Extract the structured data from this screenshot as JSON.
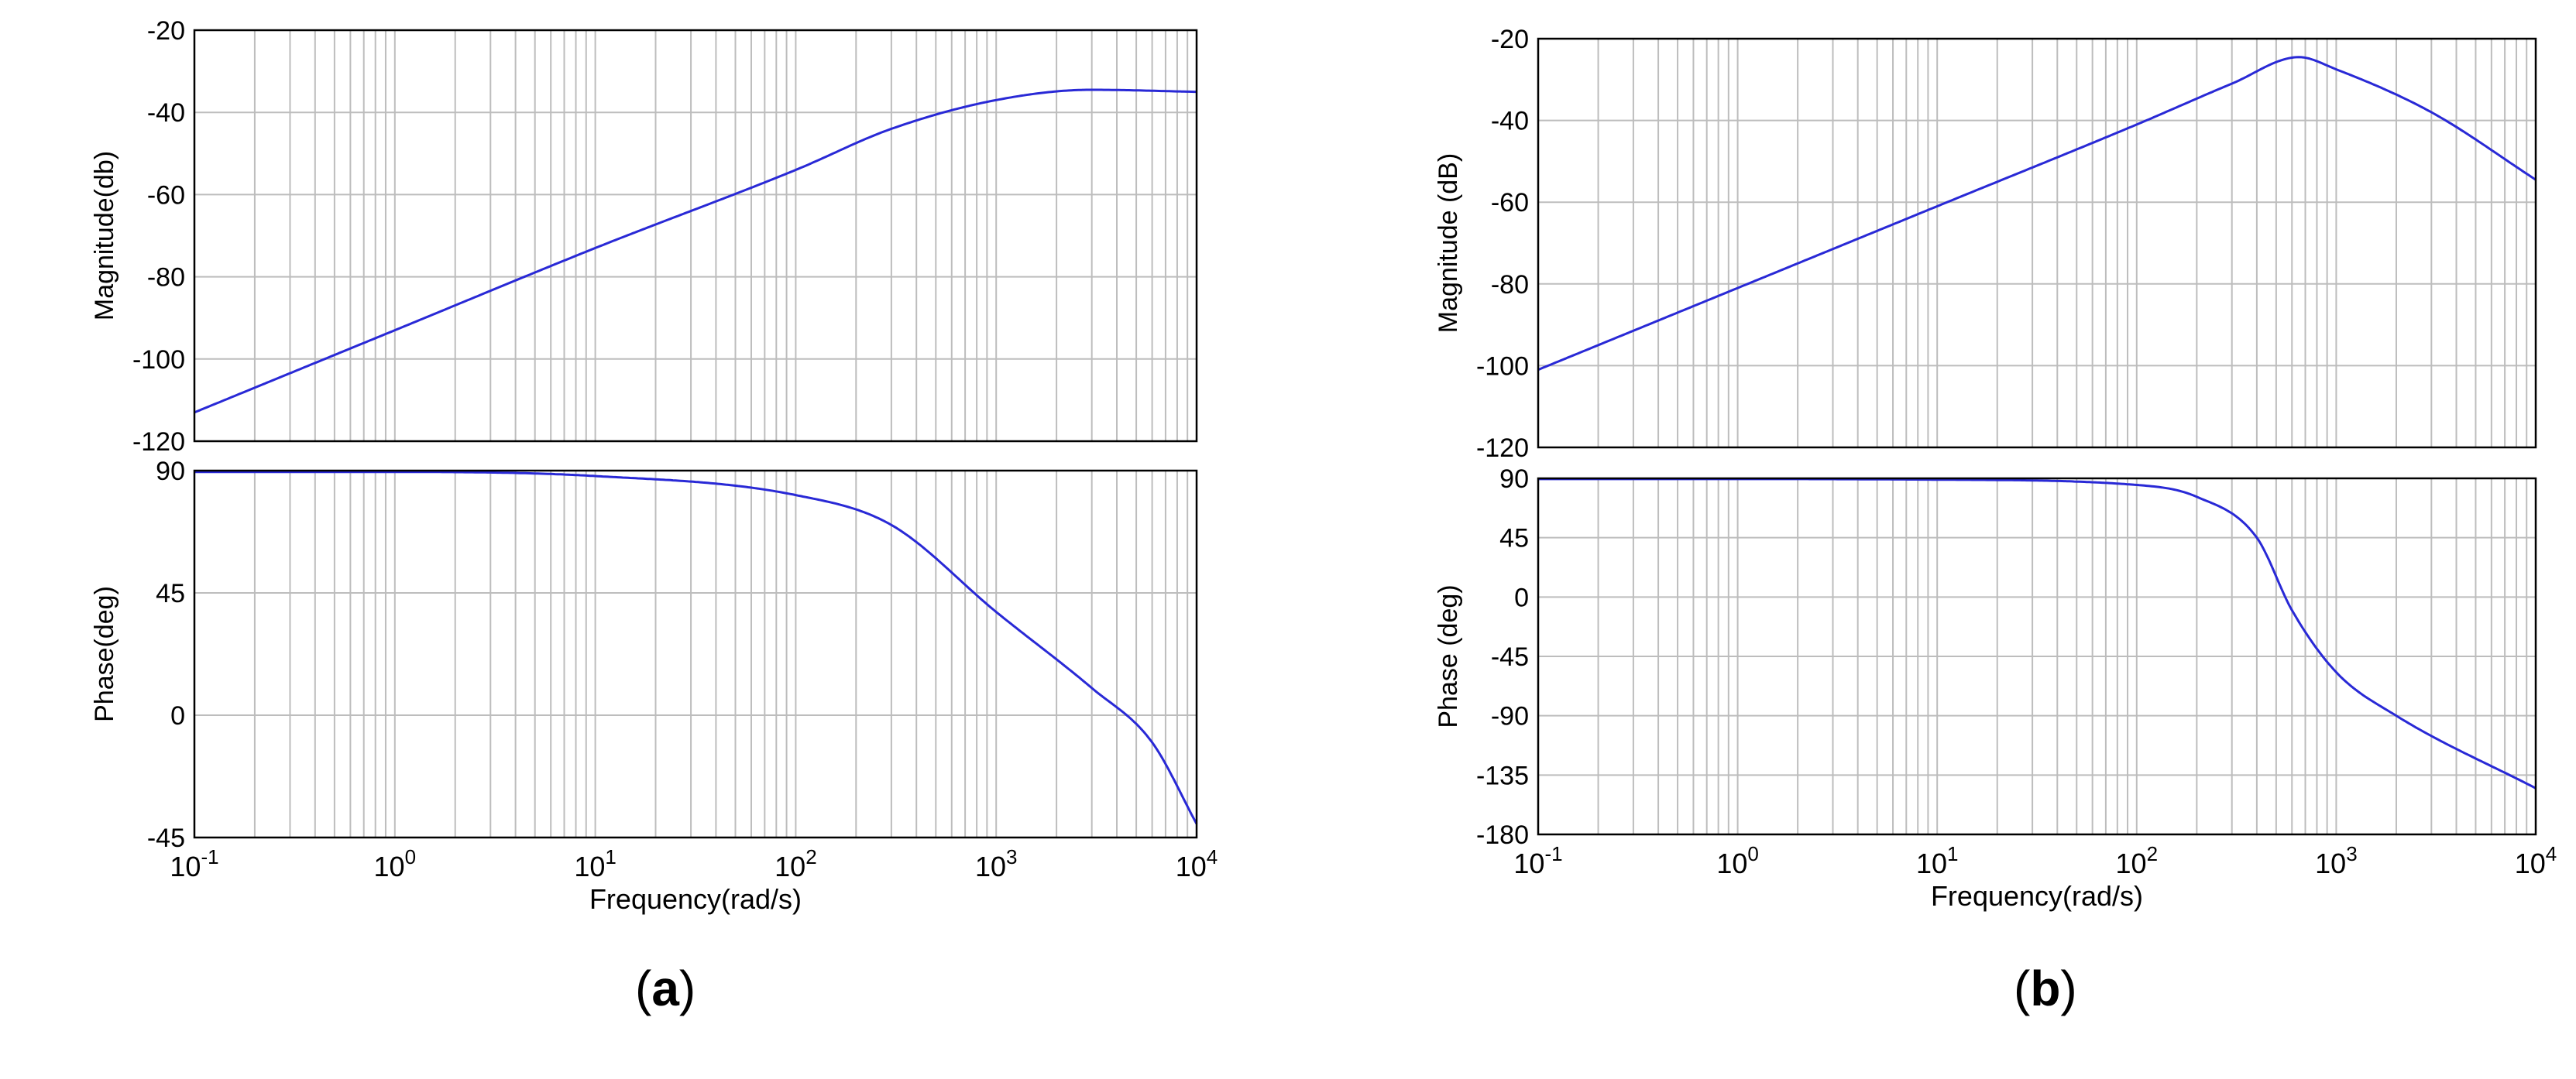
{
  "colors": {
    "line": "#2929d6",
    "grid": "#bdbdbd",
    "axis": "#000000",
    "background": "#ffffff"
  },
  "panels": [
    {
      "label_open": "(",
      "label_letter": "a",
      "label_close": ")"
    },
    {
      "label_open": "(",
      "label_letter": "b",
      "label_close": ")"
    }
  ],
  "chart_data": [
    {
      "type": "line",
      "panel": "a",
      "subplot": "magnitude",
      "ylabel": "Magnitude(db)",
      "xlabel": "",
      "x_scale": "log",
      "xlim": [
        0.1,
        10000
      ],
      "ylim": [
        -120,
        -20
      ],
      "yticks": [
        -20,
        -40,
        -60,
        -80,
        -100,
        -120
      ],
      "ytick_labels": [
        "-20",
        "-40",
        "-60",
        "-80",
        "-100",
        "-120"
      ],
      "grid": true,
      "x": [
        0.1,
        1,
        10,
        100,
        300,
        1000,
        3000,
        10000
      ],
      "y": [
        -113,
        -93,
        -73,
        -54,
        -44,
        -37,
        -34.5,
        -35
      ]
    },
    {
      "type": "line",
      "panel": "a",
      "subplot": "phase",
      "ylabel": "Phase(deg)",
      "xlabel": "Frequency(rad/s)",
      "x_scale": "log",
      "xlim": [
        0.1,
        10000
      ],
      "ylim": [
        -45,
        90
      ],
      "yticks": [
        90,
        45,
        0,
        -45
      ],
      "ytick_labels": [
        "90",
        "45",
        "0",
        "-45"
      ],
      "xticks": [
        0.1,
        1,
        10,
        100,
        1000,
        10000
      ],
      "xtick_labels": [
        [
          "10",
          "-1"
        ],
        [
          "10",
          "0"
        ],
        [
          "10",
          "1"
        ],
        [
          "10",
          "2"
        ],
        [
          "10",
          "3"
        ],
        [
          "10",
          "4"
        ]
      ],
      "grid": true,
      "x": [
        0.1,
        1,
        10,
        100,
        300,
        1000,
        3000,
        6000,
        10000
      ],
      "y": [
        89.5,
        89.5,
        88,
        81,
        70,
        38,
        10,
        -10,
        -40
      ]
    },
    {
      "type": "line",
      "panel": "b",
      "subplot": "magnitude",
      "ylabel": "Magnitude (dB)",
      "xlabel": "",
      "x_scale": "log",
      "xlim": [
        0.1,
        10000
      ],
      "ylim": [
        -120,
        -20
      ],
      "yticks": [
        -20,
        -40,
        -60,
        -80,
        -100,
        -120
      ],
      "ytick_labels": [
        "-20",
        "-40",
        "-60",
        "-80",
        "-100",
        "-120"
      ],
      "grid": true,
      "x": [
        0.1,
        1,
        10,
        100,
        300,
        650,
        1000,
        3000,
        10000
      ],
      "y": [
        -101,
        -81,
        -61,
        -41,
        -31,
        -24.5,
        -27.5,
        -38,
        -54.5
      ]
    },
    {
      "type": "line",
      "panel": "b",
      "subplot": "phase",
      "ylabel": "Phase (deg)",
      "xlabel": "Frequency(rad/s)",
      "x_scale": "log",
      "xlim": [
        0.1,
        10000
      ],
      "ylim": [
        -180,
        90
      ],
      "yticks": [
        90,
        45,
        0,
        -45,
        -90,
        -135,
        -180
      ],
      "ytick_labels": [
        "90",
        "45",
        "0",
        "-45",
        "-90",
        "-135",
        "-180"
      ],
      "xticks": [
        0.1,
        1,
        10,
        100,
        1000,
        10000
      ],
      "xtick_labels": [
        [
          "10",
          "-1"
        ],
        [
          "10",
          "0"
        ],
        [
          "10",
          "1"
        ],
        [
          "10",
          "2"
        ],
        [
          "10",
          "3"
        ],
        [
          "10",
          "4"
        ]
      ],
      "grid": true,
      "x": [
        0.1,
        1,
        10,
        100,
        200,
        400,
        600,
        1000,
        2000,
        10000
      ],
      "y": [
        89.5,
        89.5,
        89,
        85,
        76,
        45,
        -10,
        -57,
        -90,
        -145
      ]
    }
  ]
}
